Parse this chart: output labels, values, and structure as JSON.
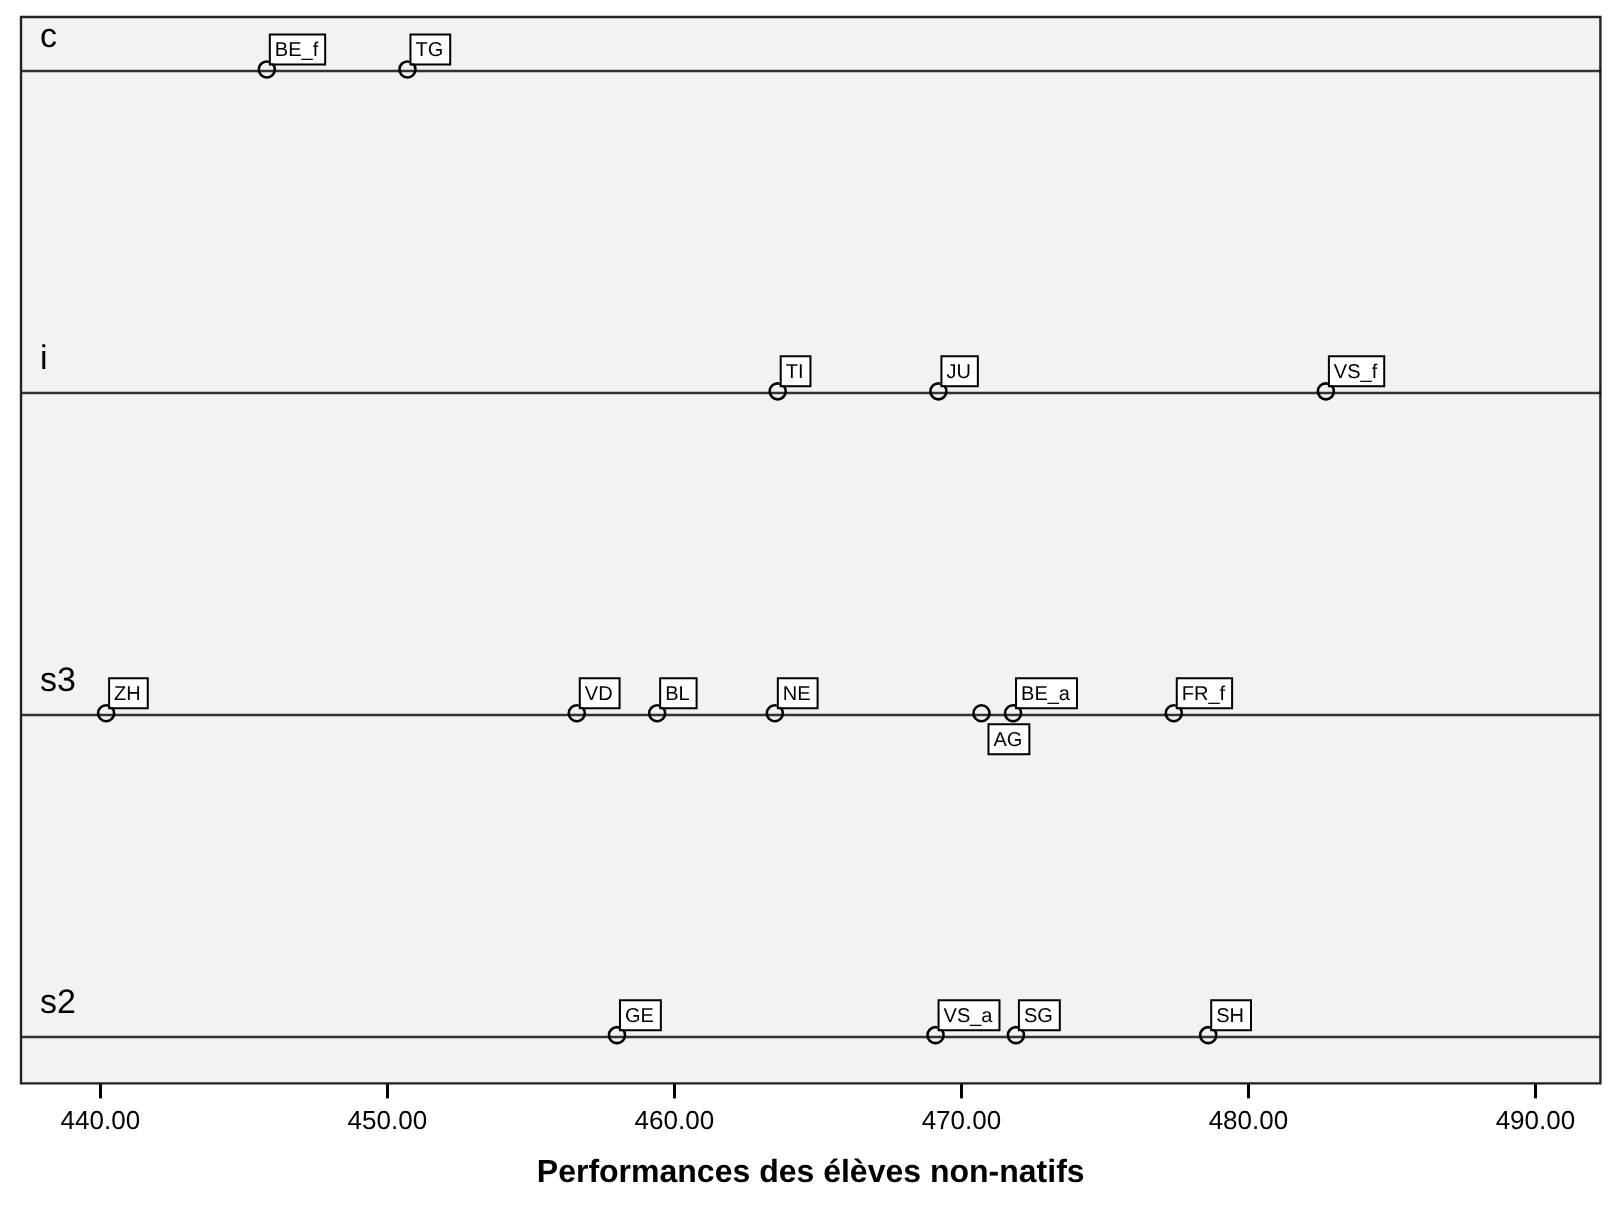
{
  "chart_data": {
    "type": "scatter",
    "orientation": "horizontal",
    "xlabel": "Performances des élèves non-natifs",
    "categories": [
      "c",
      "i",
      "s3",
      "s2"
    ],
    "marker": "circle",
    "legend": false,
    "xlim": [
      437.2,
      492.3
    ],
    "xticks": [
      {
        "value": 440,
        "label": "440.00"
      },
      {
        "value": 450,
        "label": "450.00"
      },
      {
        "value": 460,
        "label": "460.00"
      },
      {
        "value": 470,
        "label": "470.00"
      },
      {
        "value": 480,
        "label": "480.00"
      },
      {
        "value": 490,
        "label": "490.00"
      }
    ],
    "series": [
      {
        "color": "#000000",
        "values": [
          445.8,
          463.6,
          440.2,
          458.0
        ],
        "value_labels": [
          "BE_f",
          "TI",
          "ZH",
          "GE"
        ]
      },
      {
        "color": "#000000",
        "values": [
          450.7,
          469.2,
          456.6,
          469.1
        ],
        "value_labels": [
          "TG",
          "JU",
          "VD",
          "VS_a"
        ]
      },
      {
        "color": "#000000",
        "values": [
          null,
          482.7,
          459.4,
          471.9
        ],
        "value_labels": [
          null,
          "VS_f",
          "BL",
          "SG"
        ]
      },
      {
        "color": "#000000",
        "values": [
          null,
          null,
          463.5,
          478.6
        ],
        "value_labels": [
          null,
          null,
          "NE",
          "SH"
        ]
      },
      {
        "color": "#000000",
        "values": [
          null,
          null,
          470.7,
          null
        ],
        "value_labels": [
          null,
          null,
          "AG",
          null
        ]
      },
      {
        "color": "#000000",
        "values": [
          null,
          null,
          471.8,
          null
        ],
        "value_labels": [
          null,
          null,
          "BE_a",
          null
        ]
      },
      {
        "color": "#000000",
        "values": [
          null,
          null,
          477.4,
          null
        ],
        "value_labels": [
          null,
          null,
          "FR_f",
          null
        ]
      }
    ]
  }
}
